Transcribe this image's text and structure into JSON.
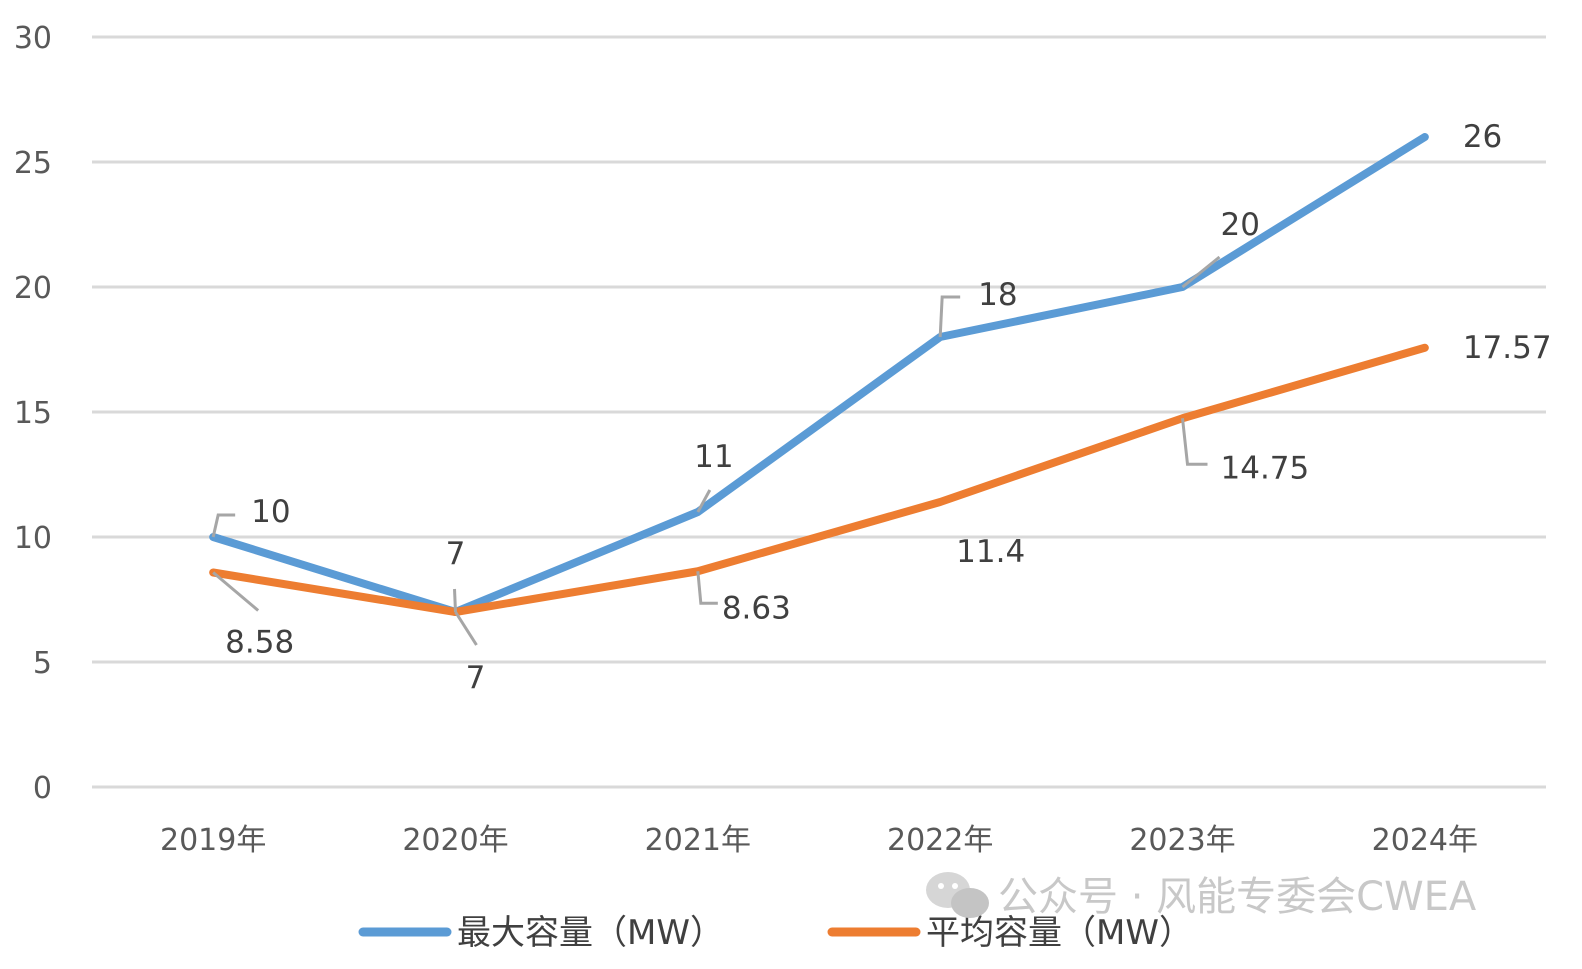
{
  "chart_data": {
    "type": "line",
    "categories": [
      "2019年",
      "2020年",
      "2021年",
      "2022年",
      "2023年",
      "2024年"
    ],
    "series": [
      {
        "name": "最大容量（MW）",
        "color": "#5b9bd5",
        "values": [
          10,
          7,
          11,
          18,
          20,
          26
        ],
        "labels": [
          "10",
          "7",
          "11",
          "18",
          "20",
          "26"
        ]
      },
      {
        "name": "平均容量（MW）",
        "color": "#ed7d31",
        "values": [
          8.58,
          7,
          8.63,
          11.4,
          14.75,
          17.57
        ],
        "labels": [
          "8.58",
          "7",
          "8.63",
          "11.4",
          "14.75",
          "17.57"
        ]
      }
    ],
    "title": "",
    "xlabel": "",
    "ylabel": "",
    "ylim": [
      0,
      30
    ],
    "yticks": [
      "0",
      "5",
      "10",
      "15",
      "20",
      "25",
      "30"
    ],
    "grid": true,
    "legend": "bottom"
  },
  "watermark": {
    "icon": "wechat-icon",
    "text": "公众号 · 风能专委会CWEA"
  }
}
